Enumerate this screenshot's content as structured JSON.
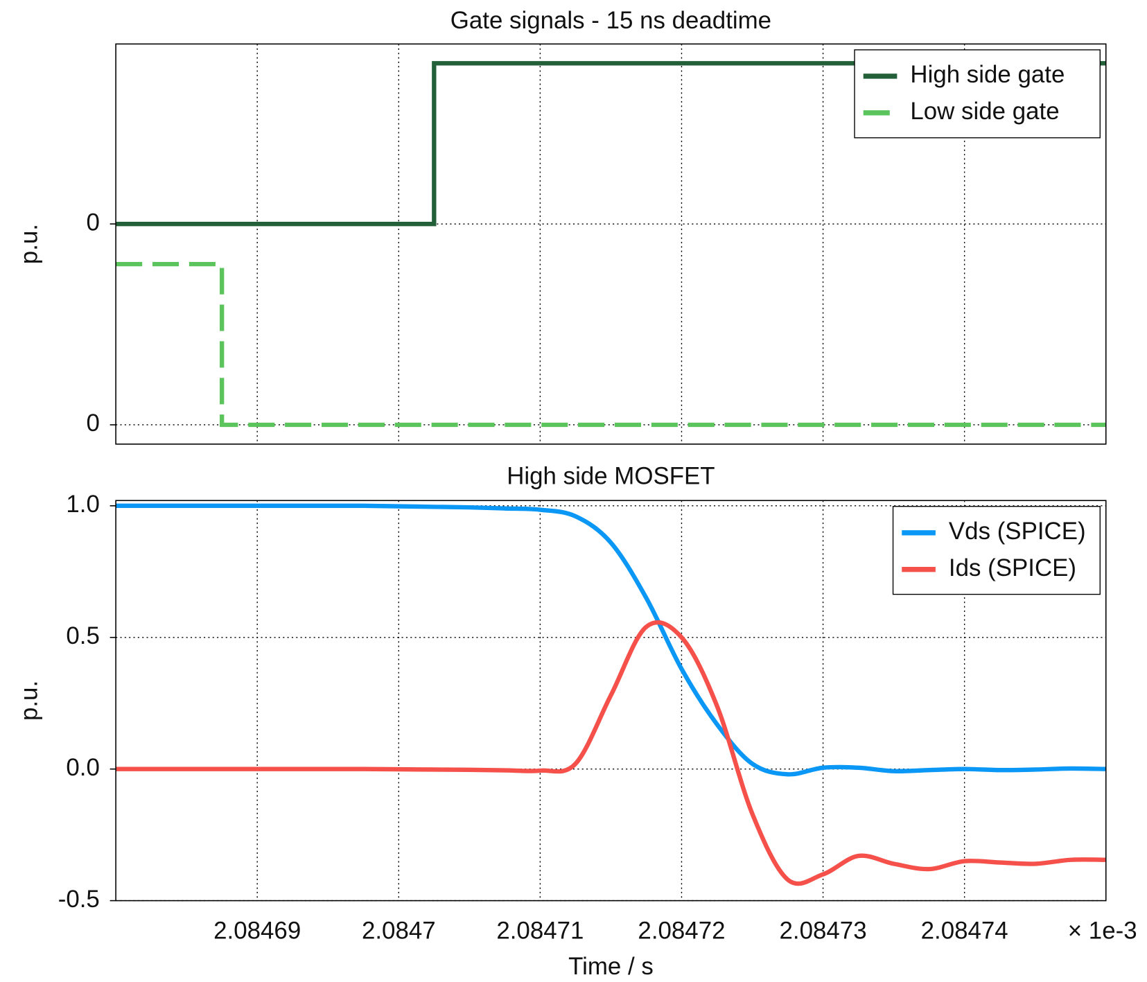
{
  "chart_data": [
    {
      "type": "line",
      "title": "Gate signals - 15 ns deadtime",
      "ylabel": "p.u.",
      "xlim": [
        2.08468,
        2.08475
      ],
      "xticks": [
        2.08469,
        2.0847,
        2.08471,
        2.08472,
        2.08473,
        2.08474
      ],
      "ylim": [
        -0.12,
        2.37
      ],
      "yticks": [
        0,
        {
          "value": 1.25,
          "label": "0"
        }
      ],
      "grid": true,
      "legend": "upper right",
      "series": [
        {
          "name": "High side gate",
          "color": "#23603a",
          "style": "solid",
          "x": [
            2.08468,
            2.0847025,
            2.0847025,
            2.08475
          ],
          "values": [
            1.25,
            1.25,
            2.25,
            2.25
          ]
        },
        {
          "name": "Low side gate",
          "color": "#5cc45c",
          "style": "dashed",
          "x": [
            2.08468,
            2.0846875,
            2.0846875,
            2.08475
          ],
          "values": [
            1,
            1,
            0,
            0
          ]
        }
      ]
    },
    {
      "type": "line",
      "title": "High side MOSFET",
      "ylabel": "p.u.",
      "xlabel": "Time / s",
      "x_offset_label": "× 1e-3",
      "xlim": [
        2.08468,
        2.08475
      ],
      "xticks": [
        2.08469,
        2.0847,
        2.08471,
        2.08472,
        2.08473,
        2.08474
      ],
      "ylim": [
        -0.5,
        1.02
      ],
      "yticks": [
        -0.5,
        {
          "value": 0,
          "label": "0.0"
        },
        0.5,
        {
          "value": 1,
          "label": "1.0"
        }
      ],
      "grid": true,
      "legend": "upper right",
      "x": [
        2.08468,
        2.0846825,
        2.084685,
        2.0846875,
        2.08469,
        2.0846925,
        2.084695,
        2.0846975,
        2.0847,
        2.0847025,
        2.084705,
        2.0847075,
        2.08471,
        2.0847125,
        2.084715,
        2.0847175,
        2.08472,
        2.0847225,
        2.084725,
        2.0847275,
        2.08473,
        2.0847325,
        2.084735,
        2.0847375,
        2.08474,
        2.0847425,
        2.084745,
        2.0847475,
        2.08475
      ],
      "series": [
        {
          "name": "Vds (SPICE)",
          "color": "#0a97f5",
          "style": "solid",
          "values": [
            1,
            1,
            1,
            1,
            1,
            1,
            1,
            1,
            0.998,
            0.996,
            0.994,
            0.99,
            0.985,
            0.96,
            0.86,
            0.65,
            0.38,
            0.17,
            0.02,
            -0.02,
            0.005,
            0.005,
            -0.008,
            -0.004,
            0,
            -0.004,
            -0.002,
            0.002,
            0
          ]
        },
        {
          "name": "Ids (SPICE)",
          "color": "#f5504a",
          "style": "solid",
          "values": [
            0,
            0,
            0,
            0,
            0,
            0,
            0,
            0,
            -0.001,
            -0.002,
            -0.003,
            -0.005,
            -0.006,
            0.02,
            0.28,
            0.54,
            0.5,
            0.24,
            -0.17,
            -0.42,
            -0.4,
            -0.33,
            -0.36,
            -0.38,
            -0.35,
            -0.355,
            -0.36,
            -0.345,
            -0.345
          ]
        }
      ]
    }
  ]
}
